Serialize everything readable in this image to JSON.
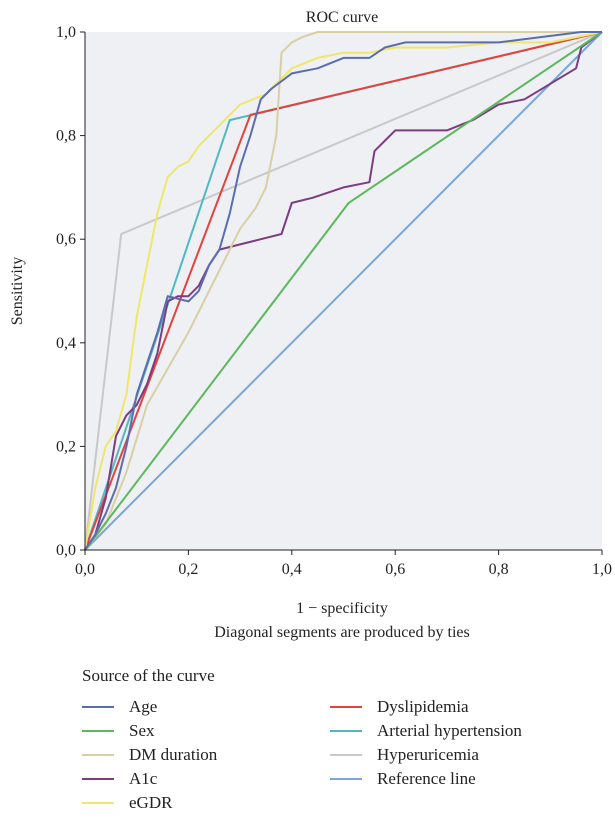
{
  "chart_data": {
    "type": "line",
    "title": "ROC curve",
    "xlabel": "1 − specificity",
    "subxlabel": "Diagonal segments are produced by ties",
    "ylabel": "Sensitivity",
    "xlim": [
      0,
      1
    ],
    "ylim": [
      0,
      1
    ],
    "xticks": [
      "0,0",
      "0,2",
      "0,4",
      "0,6",
      "0,8",
      "1,0"
    ],
    "yticks": [
      "0,0",
      "0,2",
      "0,4",
      "0,6",
      "0,8",
      "1,0"
    ],
    "legend_title": "Source of the curve",
    "legend_placement": "bottom",
    "grid": false,
    "series": [
      {
        "name": "Age",
        "color": "#5a6db0",
        "x": [
          0,
          0.02,
          0.04,
          0.06,
          0.08,
          0.1,
          0.12,
          0.14,
          0.16,
          0.2,
          0.22,
          0.24,
          0.26,
          0.28,
          0.3,
          0.32,
          0.34,
          0.36,
          0.4,
          0.45,
          0.5,
          0.55,
          0.58,
          0.62,
          0.8,
          0.96,
          1
        ],
        "y": [
          0,
          0.03,
          0.07,
          0.12,
          0.2,
          0.3,
          0.36,
          0.42,
          0.49,
          0.48,
          0.5,
          0.55,
          0.58,
          0.65,
          0.74,
          0.8,
          0.87,
          0.89,
          0.92,
          0.93,
          0.95,
          0.95,
          0.97,
          0.98,
          0.98,
          1,
          1
        ]
      },
      {
        "name": "Sex",
        "color": "#5cb85c",
        "x": [
          0,
          0.51,
          1
        ],
        "y": [
          0,
          0.67,
          1
        ]
      },
      {
        "name": "DM duration",
        "color": "#d8cfa6",
        "x": [
          0,
          0.04,
          0.08,
          0.12,
          0.16,
          0.2,
          0.24,
          0.28,
          0.3,
          0.33,
          0.35,
          0.37,
          0.38,
          0.4,
          0.42,
          0.45,
          0.48,
          1
        ],
        "y": [
          0,
          0.05,
          0.15,
          0.28,
          0.35,
          0.42,
          0.5,
          0.58,
          0.62,
          0.66,
          0.7,
          0.8,
          0.96,
          0.98,
          0.99,
          1,
          1,
          1
        ]
      },
      {
        "name": "A1c",
        "color": "#7d3c7f",
        "x": [
          0,
          0.02,
          0.04,
          0.06,
          0.08,
          0.1,
          0.12,
          0.14,
          0.16,
          0.18,
          0.2,
          0.22,
          0.24,
          0.26,
          0.3,
          0.34,
          0.38,
          0.4,
          0.44,
          0.5,
          0.55,
          0.56,
          0.6,
          0.7,
          0.75,
          0.8,
          0.85,
          0.9,
          0.95,
          0.96,
          1
        ],
        "y": [
          0,
          0.03,
          0.1,
          0.22,
          0.26,
          0.28,
          0.32,
          0.38,
          0.48,
          0.49,
          0.49,
          0.51,
          0.55,
          0.58,
          0.59,
          0.6,
          0.61,
          0.67,
          0.68,
          0.7,
          0.71,
          0.77,
          0.81,
          0.81,
          0.83,
          0.86,
          0.87,
          0.9,
          0.93,
          0.97,
          1
        ]
      },
      {
        "name": "eGDR",
        "color": "#f0e66a",
        "x": [
          0,
          0.02,
          0.04,
          0.06,
          0.08,
          0.1,
          0.12,
          0.14,
          0.16,
          0.18,
          0.2,
          0.22,
          0.25,
          0.3,
          0.35,
          0.4,
          0.45,
          0.5,
          0.55,
          0.6,
          0.7,
          0.8,
          0.9,
          1
        ],
        "y": [
          0,
          0.12,
          0.2,
          0.23,
          0.3,
          0.45,
          0.55,
          0.65,
          0.72,
          0.74,
          0.75,
          0.78,
          0.81,
          0.86,
          0.88,
          0.93,
          0.95,
          0.96,
          0.96,
          0.97,
          0.97,
          0.98,
          0.98,
          1
        ]
      },
      {
        "name": "Dyslipidemia",
        "color": "#e2433d",
        "x": [
          0,
          0.32,
          1
        ],
        "y": [
          0,
          0.84,
          1
        ]
      },
      {
        "name": "Arterial hypertension",
        "color": "#4fb8c0",
        "x": [
          0,
          0.28,
          1
        ],
        "y": [
          0,
          0.83,
          1
        ]
      },
      {
        "name": "Hyperuricemia",
        "color": "#c8c8c8",
        "x": [
          0,
          0.07,
          1
        ],
        "y": [
          0,
          0.61,
          1
        ]
      },
      {
        "name": "Reference line",
        "color": "#7aa7d6",
        "x": [
          0,
          1
        ],
        "y": [
          0,
          1
        ]
      }
    ]
  }
}
